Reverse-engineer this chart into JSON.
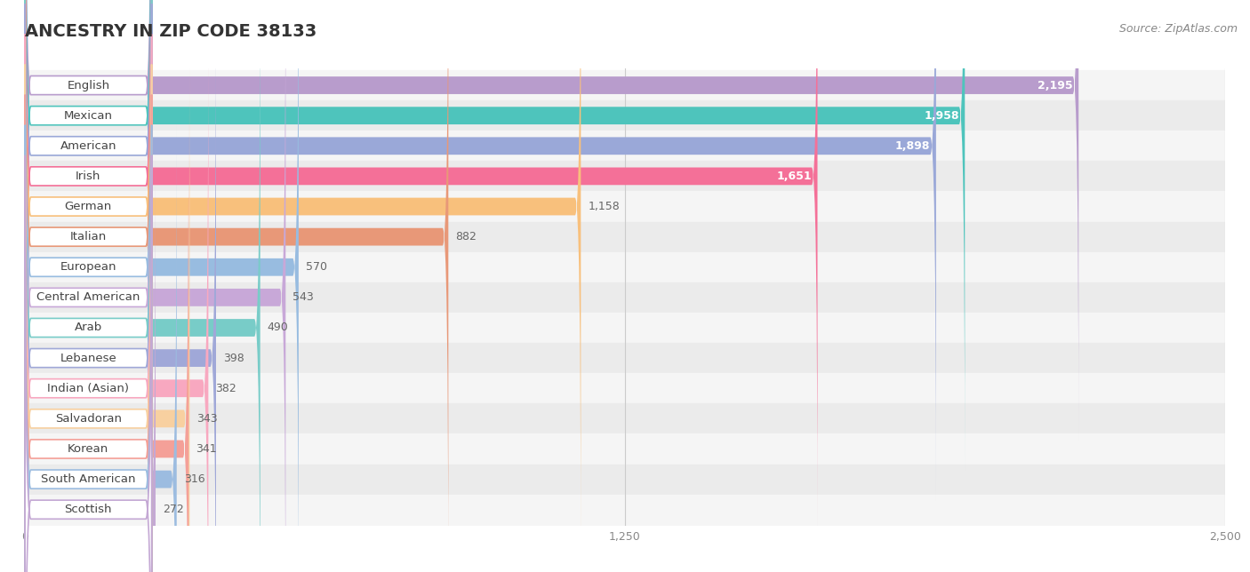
{
  "title": "ANCESTRY IN ZIP CODE 38133",
  "source": "Source: ZipAtlas.com",
  "categories": [
    "English",
    "Mexican",
    "American",
    "Irish",
    "German",
    "Italian",
    "European",
    "Central American",
    "Arab",
    "Lebanese",
    "Indian (Asian)",
    "Salvadoran",
    "Korean",
    "South American",
    "Scottish"
  ],
  "values": [
    2195,
    1958,
    1898,
    1651,
    1158,
    882,
    570,
    543,
    490,
    398,
    382,
    343,
    341,
    316,
    272
  ],
  "bar_colors": [
    "#b89ccc",
    "#4ec4bc",
    "#9aa8d8",
    "#f47098",
    "#f8c07c",
    "#e89878",
    "#98bce0",
    "#c8a8d8",
    "#78ccc8",
    "#a0a8d8",
    "#f8a8c0",
    "#f8d0a0",
    "#f4a098",
    "#9cbce0",
    "#c4a8d4"
  ],
  "xlim": [
    0,
    2500
  ],
  "xticks": [
    0,
    1250,
    2500
  ],
  "background_color": "#ffffff",
  "title_fontsize": 14,
  "source_fontsize": 9,
  "label_fontsize": 9.5,
  "value_fontsize": 9,
  "bar_height": 0.58,
  "row_colors": [
    "#f5f5f5",
    "#ebebeb"
  ]
}
